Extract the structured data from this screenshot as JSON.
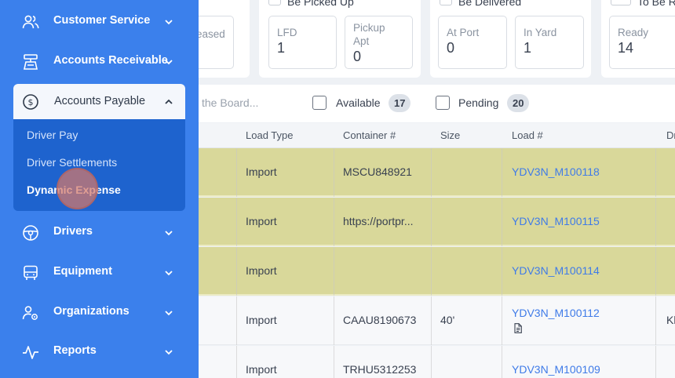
{
  "sidebar": {
    "items": [
      {
        "label": "Customer Service",
        "icon": "users-icon"
      },
      {
        "label": "Accounts Receivable",
        "icon": "cash-register-icon"
      },
      {
        "label": "Accounts Payable",
        "icon": "dollar-circle-icon",
        "expanded": true,
        "children": [
          "Driver Pay",
          "Driver Settlements",
          "Dynamic Expense"
        ]
      },
      {
        "label": "Drivers",
        "icon": "steering-wheel-icon"
      },
      {
        "label": "Equipment",
        "icon": "truck-icon"
      },
      {
        "label": "Organizations",
        "icon": "org-user-gear-icon"
      },
      {
        "label": "Reports",
        "icon": "pulse-chart-icon"
      }
    ],
    "active_child": "Dynamic Expense",
    "colors": {
      "background": "#3b80ec",
      "group": "#1e63ce"
    }
  },
  "summary": {
    "groups": [
      {
        "title": "eased",
        "cards": []
      },
      {
        "title": "Be Picked Up",
        "cards": [
          {
            "label": "LFD",
            "value": "1"
          },
          {
            "label": "Pickup Apt",
            "value": "0"
          }
        ]
      },
      {
        "title": "Be Delivered",
        "cards": [
          {
            "label": "At Port",
            "value": "0"
          },
          {
            "label": "In Yard",
            "value": "1"
          }
        ]
      },
      {
        "title": "To Be R",
        "cards": [
          {
            "label": "Ready",
            "value": "14"
          }
        ]
      }
    ]
  },
  "filters": {
    "search_placeholder": "the Board...",
    "available_label": "Available",
    "available_count": "17",
    "pending_label": "Pending",
    "pending_count": "20"
  },
  "table": {
    "columns": [
      "Load Type",
      "Container #",
      "Size",
      "Load #",
      "Dr"
    ],
    "rows": [
      {
        "load_type": "Import",
        "container": "MSCU848921",
        "size": "",
        "load": "YDV3N_M100118",
        "driver": "",
        "highlight": true
      },
      {
        "load_type": "Import",
        "container": "https://portpr...",
        "size": "",
        "load": "YDV3N_M100115",
        "driver": "",
        "highlight": true
      },
      {
        "load_type": "Import",
        "container": "",
        "size": "",
        "load": "YDV3N_M100114",
        "driver": "",
        "highlight": true
      },
      {
        "load_type": "Import",
        "container": "CAAU8190673",
        "size": "40'",
        "load": "YDV3N_M100112",
        "driver": "Kl",
        "highlight": false,
        "doc_icon": true
      },
      {
        "load_type": "Import",
        "container": "TRHU5312253",
        "size": "",
        "load": "YDV3N_M100109",
        "driver": "",
        "highlight": false
      }
    ],
    "colors": {
      "highlight": "#d9d89a",
      "link": "#3f7be8"
    }
  }
}
